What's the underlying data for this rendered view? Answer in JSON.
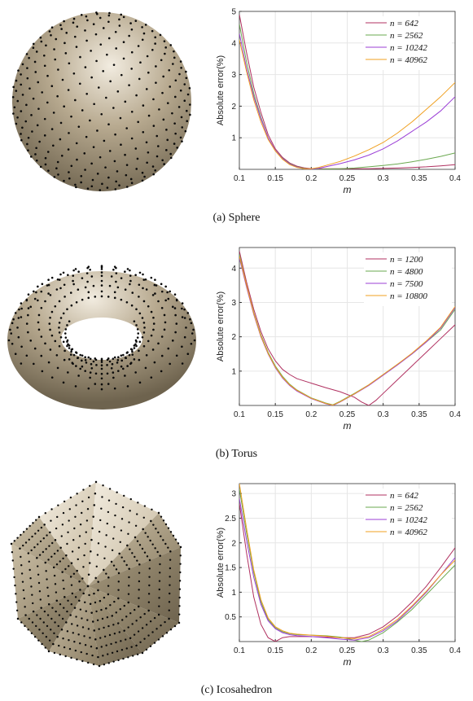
{
  "figures": [
    {
      "caption": "(a) Sphere",
      "shape": "sphere",
      "chart_data": {
        "type": "line",
        "xlabel": "m",
        "ylabel": "Absolute error(%)",
        "xlim": [
          0.1,
          0.4
        ],
        "ylim": [
          0,
          5
        ],
        "xticks": [
          "0.1",
          "0.15",
          "0.2",
          "0.25",
          "0.3",
          "0.35",
          "0.4"
        ],
        "yticks": [
          "1",
          "2",
          "3",
          "4",
          "5"
        ],
        "grid": true,
        "legend_position": "top-right",
        "series": [
          {
            "name": "n = 642",
            "color": "#b03060",
            "x": [
              0.1,
              0.11,
              0.12,
              0.13,
              0.14,
              0.15,
              0.16,
              0.17,
              0.18,
              0.19,
              0.2,
              0.21,
              0.22,
              0.24,
              0.26,
              0.28,
              0.3,
              0.32,
              0.34,
              0.36,
              0.38,
              0.4
            ],
            "y": [
              4.9,
              3.7,
              2.6,
              1.8,
              1.1,
              0.65,
              0.38,
              0.2,
              0.1,
              0.05,
              0.02,
              0.02,
              0.02,
              0.02,
              0.02,
              0.02,
              0.03,
              0.04,
              0.06,
              0.08,
              0.11,
              0.15
            ]
          },
          {
            "name": "n = 2562",
            "color": "#6aa84f",
            "x": [
              0.1,
              0.11,
              0.12,
              0.13,
              0.14,
              0.15,
              0.16,
              0.17,
              0.18,
              0.19,
              0.2,
              0.21,
              0.22,
              0.24,
              0.26,
              0.28,
              0.3,
              0.32,
              0.34,
              0.36,
              0.38,
              0.4
            ],
            "y": [
              4.6,
              3.4,
              2.4,
              1.65,
              1.0,
              0.6,
              0.35,
              0.18,
              0.08,
              0.03,
              0.01,
              0.0,
              0.01,
              0.02,
              0.04,
              0.08,
              0.12,
              0.17,
              0.24,
              0.32,
              0.41,
              0.52
            ]
          },
          {
            "name": "n = 10242",
            "color": "#9b3fd6",
            "x": [
              0.1,
              0.11,
              0.12,
              0.13,
              0.14,
              0.15,
              0.16,
              0.17,
              0.18,
              0.19,
              0.2,
              0.21,
              0.22,
              0.24,
              0.26,
              0.28,
              0.3,
              0.32,
              0.34,
              0.36,
              0.38,
              0.4
            ],
            "y": [
              4.3,
              3.2,
              2.3,
              1.6,
              1.0,
              0.6,
              0.34,
              0.17,
              0.07,
              0.02,
              0.01,
              0.03,
              0.08,
              0.18,
              0.3,
              0.45,
              0.65,
              0.9,
              1.2,
              1.5,
              1.85,
              2.3
            ]
          },
          {
            "name": "n = 40962",
            "color": "#f0a020",
            "x": [
              0.1,
              0.11,
              0.12,
              0.13,
              0.14,
              0.15,
              0.16,
              0.17,
              0.18,
              0.19,
              0.2,
              0.21,
              0.22,
              0.24,
              0.26,
              0.28,
              0.3,
              0.32,
              0.34,
              0.36,
              0.38,
              0.4
            ],
            "y": [
              4.1,
              3.1,
              2.2,
              1.5,
              0.95,
              0.58,
              0.32,
              0.15,
              0.06,
              0.02,
              0.02,
              0.06,
              0.12,
              0.25,
              0.42,
              0.62,
              0.85,
              1.15,
              1.5,
              1.9,
              2.3,
              2.75
            ]
          }
        ]
      }
    },
    {
      "caption": "(b) Torus",
      "shape": "torus",
      "chart_data": {
        "type": "line",
        "xlabel": "m",
        "ylabel": "Absolute error(%)",
        "xlim": [
          0.1,
          0.4
        ],
        "ylim": [
          0,
          4.6
        ],
        "xticks": [
          "0.1",
          "0.15",
          "0.2",
          "0.25",
          "0.3",
          "0.35",
          "0.4"
        ],
        "yticks": [
          "1",
          "2",
          "3",
          "4"
        ],
        "grid": true,
        "legend_position": "top-right",
        "series": [
          {
            "name": "n = 1200",
            "color": "#b03060",
            "x": [
              0.1,
              0.11,
              0.12,
              0.13,
              0.14,
              0.15,
              0.16,
              0.17,
              0.18,
              0.2,
              0.22,
              0.24,
              0.26,
              0.27,
              0.28,
              0.29,
              0.3,
              0.32,
              0.34,
              0.36,
              0.38,
              0.4
            ],
            "y": [
              4.5,
              3.6,
              2.8,
              2.15,
              1.65,
              1.3,
              1.05,
              0.9,
              0.78,
              0.65,
              0.52,
              0.4,
              0.24,
              0.1,
              0.0,
              0.15,
              0.35,
              0.75,
              1.15,
              1.55,
              1.95,
              2.35
            ]
          },
          {
            "name": "n = 4800",
            "color": "#6aa84f",
            "x": [
              0.1,
              0.11,
              0.12,
              0.13,
              0.14,
              0.15,
              0.16,
              0.17,
              0.18,
              0.2,
              0.22,
              0.23,
              0.24,
              0.26,
              0.28,
              0.3,
              0.32,
              0.34,
              0.36,
              0.38,
              0.4
            ],
            "y": [
              4.4,
              3.5,
              2.7,
              2.05,
              1.55,
              1.15,
              0.85,
              0.62,
              0.45,
              0.22,
              0.07,
              0.02,
              0.12,
              0.35,
              0.6,
              0.9,
              1.2,
              1.5,
              1.85,
              2.2,
              2.8
            ]
          },
          {
            "name": "n = 7500",
            "color": "#9b3fd6",
            "x": [
              0.1,
              0.11,
              0.12,
              0.13,
              0.14,
              0.15,
              0.16,
              0.17,
              0.18,
              0.2,
              0.22,
              0.23,
              0.24,
              0.26,
              0.28,
              0.3,
              0.32,
              0.34,
              0.36,
              0.38,
              0.4
            ],
            "y": [
              4.3,
              3.45,
              2.65,
              2.0,
              1.5,
              1.1,
              0.8,
              0.58,
              0.42,
              0.2,
              0.05,
              0.0,
              0.1,
              0.33,
              0.58,
              0.88,
              1.18,
              1.5,
              1.85,
              2.25,
              2.85
            ]
          },
          {
            "name": "n = 10800",
            "color": "#f0a020",
            "x": [
              0.1,
              0.11,
              0.12,
              0.13,
              0.14,
              0.15,
              0.16,
              0.17,
              0.18,
              0.2,
              0.22,
              0.23,
              0.24,
              0.26,
              0.28,
              0.3,
              0.32,
              0.34,
              0.36,
              0.38,
              0.4
            ],
            "y": [
              4.35,
              3.5,
              2.68,
              2.02,
              1.52,
              1.12,
              0.82,
              0.6,
              0.44,
              0.21,
              0.06,
              0.01,
              0.11,
              0.34,
              0.6,
              0.9,
              1.2,
              1.52,
              1.88,
              2.28,
              2.88
            ]
          }
        ]
      }
    },
    {
      "caption": "(c) Icosahedron",
      "shape": "icosahedron",
      "chart_data": {
        "type": "line",
        "xlabel": "m",
        "ylabel": "Absolute error(%)",
        "xlim": [
          0.1,
          0.4
        ],
        "ylim": [
          0,
          3.2
        ],
        "xticks": [
          "0.1",
          "0.15",
          "0.2",
          "0.25",
          "0.3",
          "0.35",
          "0.4"
        ],
        "yticks": [
          "0.5",
          "1",
          "1.5",
          "2",
          "2.5",
          "3"
        ],
        "grid": true,
        "legend_position": "top-right",
        "series": [
          {
            "name": "n = 642",
            "color": "#b03060",
            "x": [
              0.1,
              0.11,
              0.12,
              0.13,
              0.14,
              0.15,
              0.16,
              0.17,
              0.18,
              0.2,
              0.22,
              0.24,
              0.26,
              0.28,
              0.3,
              0.32,
              0.34,
              0.36,
              0.38,
              0.4
            ],
            "y": [
              2.8,
              1.8,
              0.9,
              0.35,
              0.08,
              0.0,
              0.08,
              0.1,
              0.1,
              0.1,
              0.09,
              0.08,
              0.08,
              0.15,
              0.3,
              0.52,
              0.8,
              1.12,
              1.5,
              1.9
            ]
          },
          {
            "name": "n = 2562",
            "color": "#6aa84f",
            "x": [
              0.1,
              0.11,
              0.12,
              0.13,
              0.14,
              0.15,
              0.16,
              0.17,
              0.18,
              0.2,
              0.22,
              0.24,
              0.26,
              0.27,
              0.28,
              0.3,
              0.32,
              0.34,
              0.36,
              0.38,
              0.4
            ],
            "y": [
              3.1,
              2.2,
              1.4,
              0.8,
              0.45,
              0.28,
              0.2,
              0.16,
              0.14,
              0.13,
              0.12,
              0.09,
              0.03,
              0.0,
              0.03,
              0.18,
              0.4,
              0.65,
              0.95,
              1.25,
              1.55
            ]
          },
          {
            "name": "n = 10242",
            "color": "#9b3fd6",
            "x": [
              0.1,
              0.11,
              0.12,
              0.13,
              0.14,
              0.15,
              0.16,
              0.17,
              0.18,
              0.2,
              0.22,
              0.24,
              0.26,
              0.28,
              0.3,
              0.32,
              0.34,
              0.36,
              0.38,
              0.4
            ],
            "y": [
              2.9,
              2.05,
              1.3,
              0.75,
              0.42,
              0.26,
              0.18,
              0.14,
              0.12,
              0.1,
              0.08,
              0.05,
              0.03,
              0.08,
              0.22,
              0.42,
              0.7,
              1.0,
              1.35,
              1.7
            ]
          },
          {
            "name": "n = 40962",
            "color": "#f0a020",
            "x": [
              0.1,
              0.11,
              0.12,
              0.13,
              0.14,
              0.15,
              0.16,
              0.17,
              0.18,
              0.2,
              0.22,
              0.24,
              0.26,
              0.28,
              0.3,
              0.32,
              0.34,
              0.36,
              0.38,
              0.4
            ],
            "y": [
              3.2,
              2.3,
              1.45,
              0.85,
              0.48,
              0.3,
              0.22,
              0.17,
              0.15,
              0.13,
              0.11,
              0.08,
              0.06,
              0.1,
              0.25,
              0.45,
              0.72,
              1.02,
              1.35,
              1.65
            ]
          }
        ]
      }
    }
  ],
  "colors": {
    "surface_light": "#f2ece0",
    "surface_mid": "#b8aa90",
    "surface_dark": "#6e634e",
    "dot": "#0a0a0a",
    "axis": "#333333",
    "grid": "#e6e6e6"
  }
}
